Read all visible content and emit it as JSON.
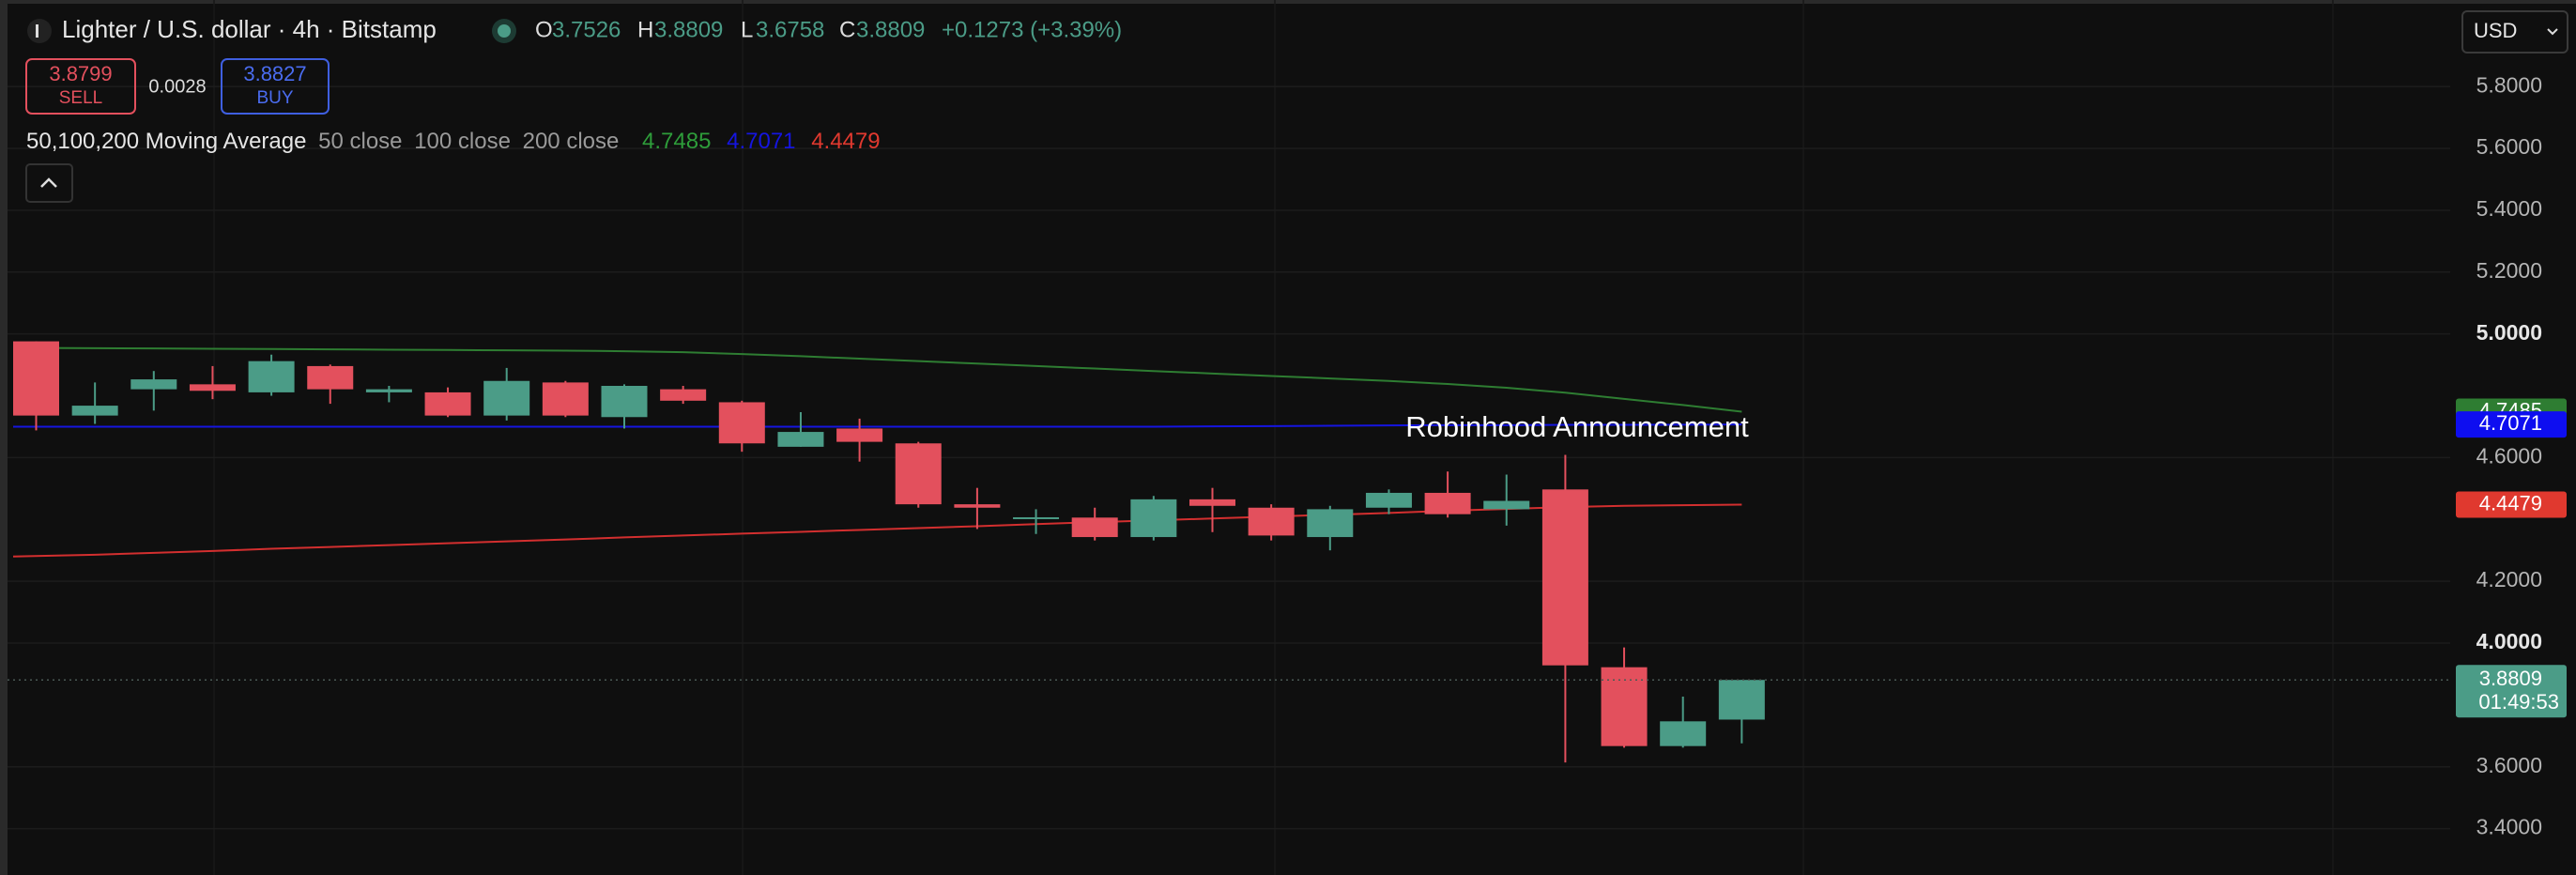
{
  "header": {
    "symbol": "Lighter / U.S. dollar · 4h · Bitstamp",
    "ohlc_labels": [
      "O",
      "H",
      "L",
      "C"
    ],
    "change": "+0.1273 (+3.39%)",
    "sell": {
      "price": 3.8799,
      "label": "SELL"
    },
    "spread": 0.0028,
    "buy": {
      "price": 3.8827,
      "label": "BUY"
    },
    "currency": "USD"
  },
  "indicator": {
    "name": "50,100,200 Moving Average"
  },
  "countdown": "01:49:53",
  "chart_data": {
    "type": "candlestick",
    "annotation": "Robinhood Announcement",
    "ylim": [
      3.25,
      6.08
    ],
    "yticks": [
      {
        "value": 5.8,
        "label": "5.8000"
      },
      {
        "value": 5.6,
        "label": "5.6000"
      },
      {
        "value": 5.4,
        "label": "5.4000"
      },
      {
        "value": 5.2,
        "label": "5.2000"
      },
      {
        "value": 5.0,
        "label": "5.0000"
      },
      {
        "value": 4.6,
        "label": "4.6000"
      },
      {
        "value": 4.2,
        "label": "4.2000"
      },
      {
        "value": 4.0,
        "label": "4.0000"
      },
      {
        "value": 3.6,
        "label": "3.6000"
      },
      {
        "value": 3.4,
        "label": "3.4000"
      }
    ],
    "grid": true,
    "up_color": "#4b9c87",
    "down_color": "#e3505d",
    "candles": {
      "open": [
        4.976,
        4.736,
        4.821,
        4.837,
        4.811,
        4.896,
        4.811,
        4.811,
        4.736,
        4.843,
        4.731,
        4.821,
        4.779,
        4.635,
        4.694,
        4.646,
        4.449,
        4.401,
        4.406,
        4.343,
        4.465,
        4.438,
        4.343,
        4.438,
        4.486,
        4.433,
        4.497,
        3.922,
        3.667,
        3.7526
      ],
      "high": [
        4.976,
        4.843,
        4.88,
        4.896,
        4.933,
        4.901,
        4.832,
        4.827,
        4.89,
        4.848,
        4.837,
        4.832,
        4.784,
        4.747,
        4.726,
        4.651,
        4.502,
        4.433,
        4.438,
        4.476,
        4.502,
        4.449,
        4.444,
        4.497,
        4.555,
        4.545,
        4.609,
        3.986,
        3.827,
        3.8809
      ],
      "low": [
        4.688,
        4.709,
        4.752,
        4.789,
        4.8,
        4.774,
        4.779,
        4.731,
        4.72,
        4.731,
        4.694,
        4.774,
        4.619,
        4.635,
        4.587,
        4.438,
        4.369,
        4.353,
        4.332,
        4.332,
        4.359,
        4.332,
        4.3,
        4.417,
        4.406,
        4.38,
        3.614,
        3.662,
        3.662,
        3.6758
      ],
      "close": [
        4.736,
        4.768,
        4.853,
        4.816,
        4.912,
        4.821,
        4.821,
        4.736,
        4.848,
        4.736,
        4.832,
        4.784,
        4.646,
        4.683,
        4.651,
        4.449,
        4.438,
        4.407,
        4.343,
        4.465,
        4.444,
        4.348,
        4.433,
        4.486,
        4.417,
        4.46,
        3.928,
        3.667,
        3.747,
        3.8809
      ]
    },
    "series": [
      {
        "name": "50 close",
        "color": "#2e7d32",
        "values": [
          4.955,
          4.954,
          4.953,
          4.952,
          4.951,
          4.95,
          4.949,
          4.948,
          4.947,
          4.946,
          4.944,
          4.941,
          4.935,
          4.928,
          4.92,
          4.912,
          4.904,
          4.896,
          4.888,
          4.88,
          4.872,
          4.864,
          4.856,
          4.848,
          4.838,
          4.826,
          4.81,
          4.79,
          4.77,
          4.7485
        ]
      },
      {
        "name": "100 close",
        "color": "#1515e0",
        "values": [
          4.7,
          4.7,
          4.7,
          4.7,
          4.7,
          4.7,
          4.7,
          4.7,
          4.7,
          4.7,
          4.7,
          4.7,
          4.7,
          4.7,
          4.7,
          4.7,
          4.7,
          4.7,
          4.7,
          4.7,
          4.701,
          4.702,
          4.703,
          4.704,
          4.705,
          4.705,
          4.706,
          4.706,
          4.7065,
          4.7071
        ]
      },
      {
        "name": "200 close",
        "color": "#d32f2f",
        "values": [
          4.28,
          4.286,
          4.292,
          4.298,
          4.305,
          4.311,
          4.317,
          4.323,
          4.329,
          4.335,
          4.342,
          4.348,
          4.354,
          4.36,
          4.366,
          4.372,
          4.378,
          4.385,
          4.391,
          4.397,
          4.403,
          4.409,
          4.415,
          4.421,
          4.428,
          4.434,
          4.44,
          4.444,
          4.446,
          4.4479
        ]
      }
    ]
  }
}
